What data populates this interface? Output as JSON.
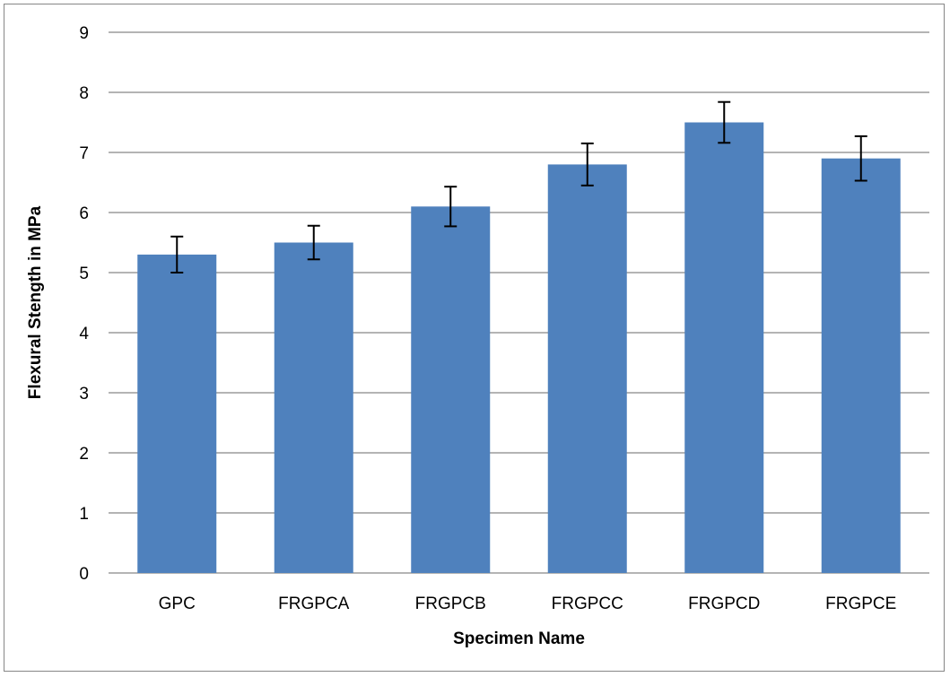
{
  "chart_data": {
    "type": "bar",
    "title": "",
    "xlabel": "Specimen Name",
    "ylabel": "Flexural Stength in MPa",
    "categories": [
      "GPC",
      "FRGPCA",
      "FRGPCB",
      "FRGPCC",
      "FRGPCD",
      "FRGPCE"
    ],
    "values": [
      5.3,
      5.5,
      6.1,
      6.8,
      7.5,
      6.9
    ],
    "error_bars": [
      {
        "low": 5.0,
        "high": 5.6
      },
      {
        "low": 5.22,
        "high": 5.78
      },
      {
        "low": 5.77,
        "high": 6.43
      },
      {
        "low": 6.45,
        "high": 7.15
      },
      {
        "low": 7.16,
        "high": 7.84
      },
      {
        "low": 6.53,
        "high": 7.27
      }
    ],
    "ylim": [
      0,
      9
    ],
    "yticks": [
      "0",
      "1",
      "2",
      "3",
      "4",
      "5",
      "6",
      "7",
      "8",
      "9"
    ],
    "grid": true,
    "legend": "none",
    "bar_color": "#4F81BD",
    "grid_color": "#868686"
  }
}
